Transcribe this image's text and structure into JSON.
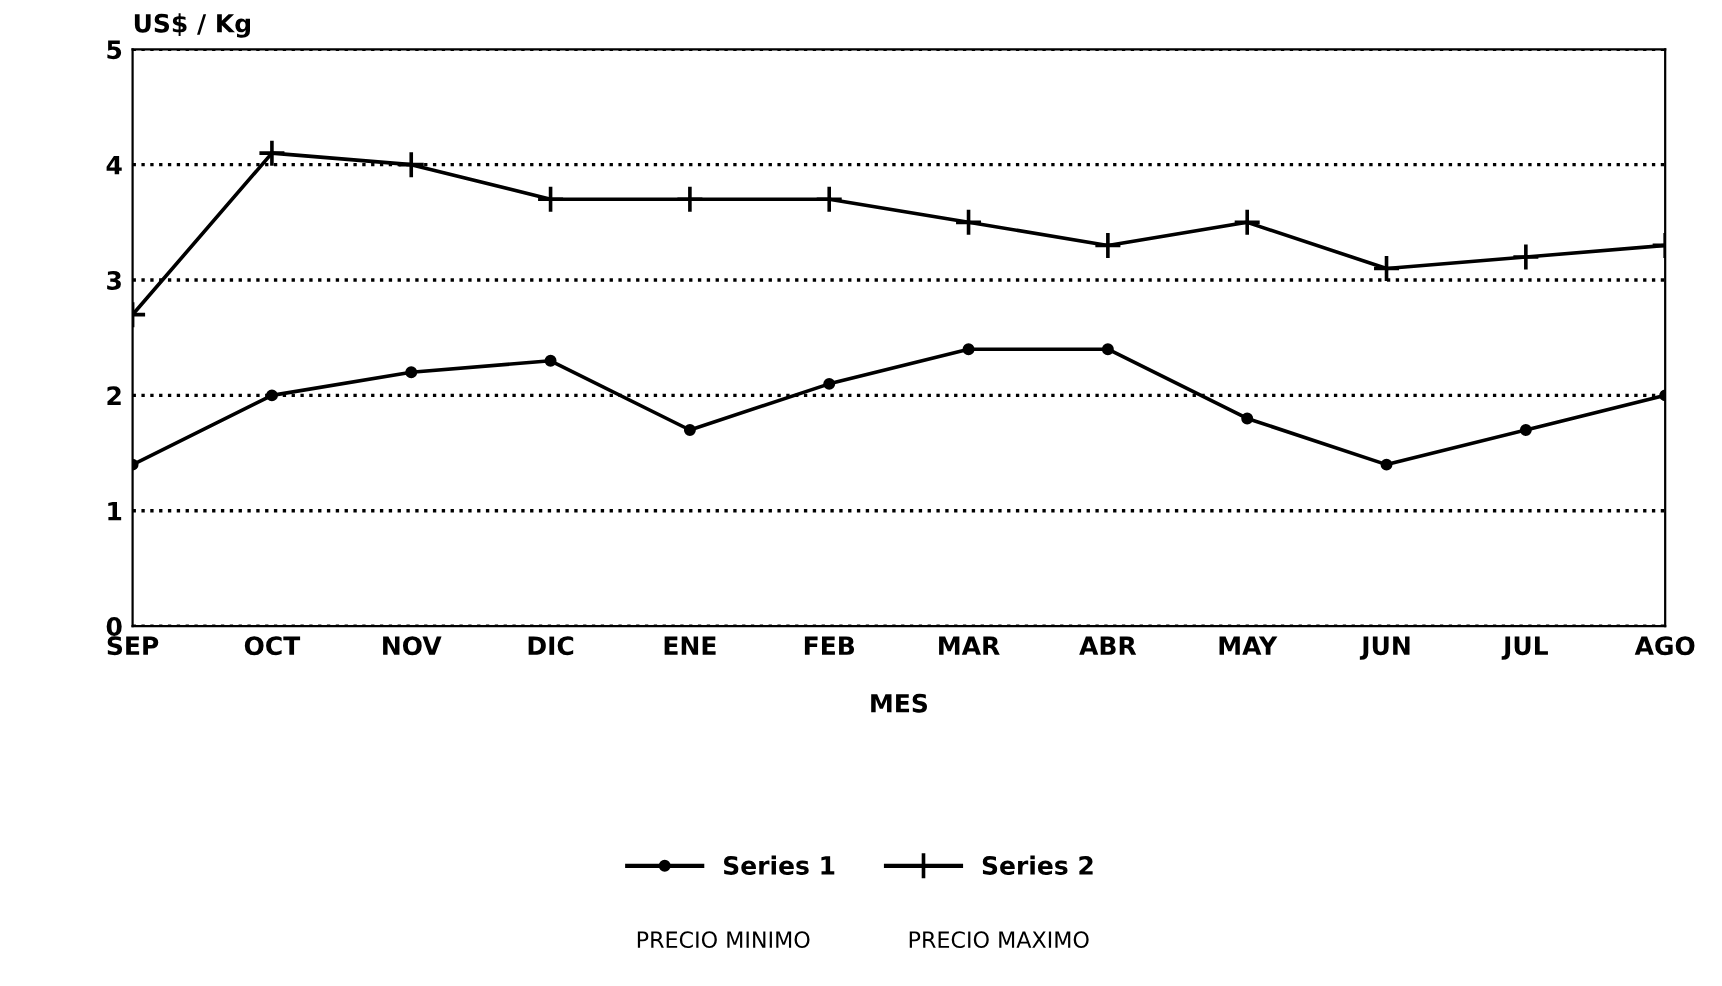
{
  "chart_data": {
    "type": "line",
    "ylabel": "US$ / Kg",
    "xlabel": "MES",
    "categories": [
      "SEP",
      "OCT",
      "NOV",
      "DIC",
      "ENE",
      "FEB",
      "MAR",
      "ABR",
      "MAY",
      "JUN",
      "JUL",
      "AGO"
    ],
    "series": [
      {
        "name": "Series 1",
        "color": "#000000",
        "marker": "circle",
        "values": [
          1.4,
          2.0,
          2.2,
          2.3,
          1.7,
          2.1,
          2.4,
          2.4,
          1.8,
          1.4,
          1.7,
          2.0
        ]
      },
      {
        "name": "Series 2",
        "color": "#000000",
        "marker": "cross",
        "values": [
          2.7,
          4.1,
          4.0,
          3.7,
          3.7,
          3.7,
          3.5,
          3.3,
          3.5,
          3.1,
          3.2,
          3.3
        ]
      }
    ],
    "ylim": [
      0,
      5
    ],
    "yticks": [
      0,
      1,
      2,
      3,
      4,
      5
    ],
    "grid": "y",
    "legend": "bottom",
    "line_style": "solid",
    "annotations": [
      "PRECIO MINIMO",
      "PRECIO MAXIMO"
    ]
  }
}
